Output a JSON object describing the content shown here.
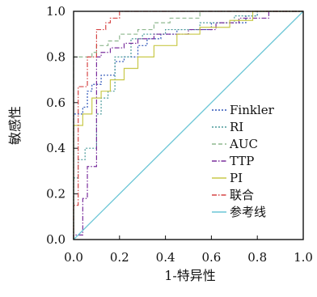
{
  "chart_data": {
    "type": "line",
    "title": "",
    "xlabel": "1-特异性",
    "ylabel": "敏感性",
    "xlim": [
      0,
      1
    ],
    "ylim": [
      0,
      1
    ],
    "x_ticks": [
      "0.0",
      "0.2",
      "0.4",
      "0.6",
      "0.8",
      "1.0"
    ],
    "y_ticks": [
      "0.0",
      "0.2",
      "0.4",
      "0.6",
      "0.8",
      "1.0"
    ],
    "grid": false,
    "legend_position": "lower-right",
    "series": [
      {
        "name": "Finkler",
        "color": "#2e55b8",
        "dash": "dotted",
        "points": [
          [
            0,
            0
          ],
          [
            0,
            0.55
          ],
          [
            0.04,
            0.55
          ],
          [
            0.04,
            0.58
          ],
          [
            0.06,
            0.58
          ],
          [
            0.06,
            0.65
          ],
          [
            0.08,
            0.65
          ],
          [
            0.08,
            0.68
          ],
          [
            0.12,
            0.68
          ],
          [
            0.12,
            0.72
          ],
          [
            0.18,
            0.72
          ],
          [
            0.18,
            0.78
          ],
          [
            0.22,
            0.78
          ],
          [
            0.22,
            0.8
          ],
          [
            0.28,
            0.8
          ],
          [
            0.28,
            0.85
          ],
          [
            0.32,
            0.85
          ],
          [
            0.32,
            0.88
          ],
          [
            0.38,
            0.88
          ],
          [
            0.38,
            0.9
          ],
          [
            0.45,
            0.9
          ],
          [
            0.45,
            0.92
          ],
          [
            0.6,
            0.92
          ],
          [
            0.6,
            0.95
          ],
          [
            0.75,
            0.95
          ],
          [
            0.75,
            0.98
          ],
          [
            0.8,
            0.98
          ],
          [
            0.8,
            1.0
          ],
          [
            1,
            1
          ]
        ]
      },
      {
        "name": "RI",
        "color": "#4a9a9a",
        "dash": "dotted",
        "points": [
          [
            0,
            0
          ],
          [
            0,
            0.27
          ],
          [
            0.02,
            0.27
          ],
          [
            0.02,
            0.35
          ],
          [
            0.05,
            0.35
          ],
          [
            0.05,
            0.4
          ],
          [
            0.1,
            0.4
          ],
          [
            0.1,
            0.55
          ],
          [
            0.12,
            0.55
          ],
          [
            0.12,
            0.62
          ],
          [
            0.15,
            0.62
          ],
          [
            0.15,
            0.65
          ],
          [
            0.18,
            0.65
          ],
          [
            0.18,
            0.8
          ],
          [
            0.25,
            0.8
          ],
          [
            0.25,
            0.88
          ],
          [
            0.3,
            0.88
          ],
          [
            0.3,
            0.9
          ],
          [
            0.4,
            0.9
          ],
          [
            0.4,
            0.92
          ],
          [
            0.55,
            0.92
          ],
          [
            0.55,
            0.95
          ],
          [
            0.7,
            0.95
          ],
          [
            0.7,
            0.98
          ],
          [
            0.8,
            0.98
          ],
          [
            0.8,
            1.0
          ],
          [
            1,
            1
          ]
        ]
      },
      {
        "name": "AUC",
        "color": "#8fb88f",
        "dash": "dashed",
        "points": [
          [
            0,
            0
          ],
          [
            0,
            0.8
          ],
          [
            0.08,
            0.8
          ],
          [
            0.08,
            0.82
          ],
          [
            0.1,
            0.82
          ],
          [
            0.1,
            0.85
          ],
          [
            0.15,
            0.85
          ],
          [
            0.15,
            0.87
          ],
          [
            0.2,
            0.87
          ],
          [
            0.2,
            0.9
          ],
          [
            0.28,
            0.9
          ],
          [
            0.28,
            0.92
          ],
          [
            0.35,
            0.92
          ],
          [
            0.35,
            0.95
          ],
          [
            0.42,
            0.95
          ],
          [
            0.42,
            0.97
          ],
          [
            0.55,
            0.97
          ],
          [
            0.55,
            1.0
          ],
          [
            1,
            1
          ]
        ]
      },
      {
        "name": "TTP",
        "color": "#7a2e9c",
        "dash": "dashdot",
        "points": [
          [
            0,
            0
          ],
          [
            0,
            0.02
          ],
          [
            0.04,
            0.02
          ],
          [
            0.04,
            0.18
          ],
          [
            0.06,
            0.18
          ],
          [
            0.06,
            0.32
          ],
          [
            0.1,
            0.32
          ],
          [
            0.1,
            0.8
          ],
          [
            0.12,
            0.8
          ],
          [
            0.12,
            0.82
          ],
          [
            0.16,
            0.82
          ],
          [
            0.16,
            0.84
          ],
          [
            0.22,
            0.84
          ],
          [
            0.22,
            0.86
          ],
          [
            0.28,
            0.86
          ],
          [
            0.28,
            0.88
          ],
          [
            0.35,
            0.88
          ],
          [
            0.35,
            0.9
          ],
          [
            0.5,
            0.9
          ],
          [
            0.5,
            0.92
          ],
          [
            0.62,
            0.92
          ],
          [
            0.62,
            0.95
          ],
          [
            0.72,
            0.95
          ],
          [
            0.72,
            0.97
          ],
          [
            0.85,
            0.97
          ],
          [
            0.85,
            1.0
          ],
          [
            1,
            1
          ]
        ]
      },
      {
        "name": "PI",
        "color": "#c9c94a",
        "dash": "solid",
        "points": [
          [
            0,
            0
          ],
          [
            0,
            0.5
          ],
          [
            0.04,
            0.5
          ],
          [
            0.04,
            0.55
          ],
          [
            0.08,
            0.55
          ],
          [
            0.08,
            0.62
          ],
          [
            0.12,
            0.62
          ],
          [
            0.12,
            0.65
          ],
          [
            0.16,
            0.65
          ],
          [
            0.16,
            0.7
          ],
          [
            0.22,
            0.7
          ],
          [
            0.22,
            0.75
          ],
          [
            0.28,
            0.75
          ],
          [
            0.28,
            0.8
          ],
          [
            0.35,
            0.8
          ],
          [
            0.35,
            0.85
          ],
          [
            0.45,
            0.85
          ],
          [
            0.45,
            0.9
          ],
          [
            0.55,
            0.9
          ],
          [
            0.55,
            0.93
          ],
          [
            0.68,
            0.93
          ],
          [
            0.68,
            0.96
          ],
          [
            0.78,
            0.96
          ],
          [
            0.78,
            1.0
          ],
          [
            1,
            1
          ]
        ]
      },
      {
        "name": "联合",
        "color": "#d64545",
        "dash": "dashdot",
        "points": [
          [
            0,
            0
          ],
          [
            0,
            0.15
          ],
          [
            0.02,
            0.15
          ],
          [
            0.02,
            0.67
          ],
          [
            0.06,
            0.67
          ],
          [
            0.06,
            0.8
          ],
          [
            0.1,
            0.8
          ],
          [
            0.1,
            0.92
          ],
          [
            0.14,
            0.92
          ],
          [
            0.14,
            0.95
          ],
          [
            0.16,
            0.95
          ],
          [
            0.16,
            0.97
          ],
          [
            0.2,
            0.97
          ],
          [
            0.2,
            1.0
          ],
          [
            1,
            1
          ]
        ]
      },
      {
        "name": "参考线",
        "color": "#6cc6d6",
        "dash": "solid",
        "points": [
          [
            0,
            0
          ],
          [
            1,
            1
          ]
        ]
      }
    ]
  }
}
